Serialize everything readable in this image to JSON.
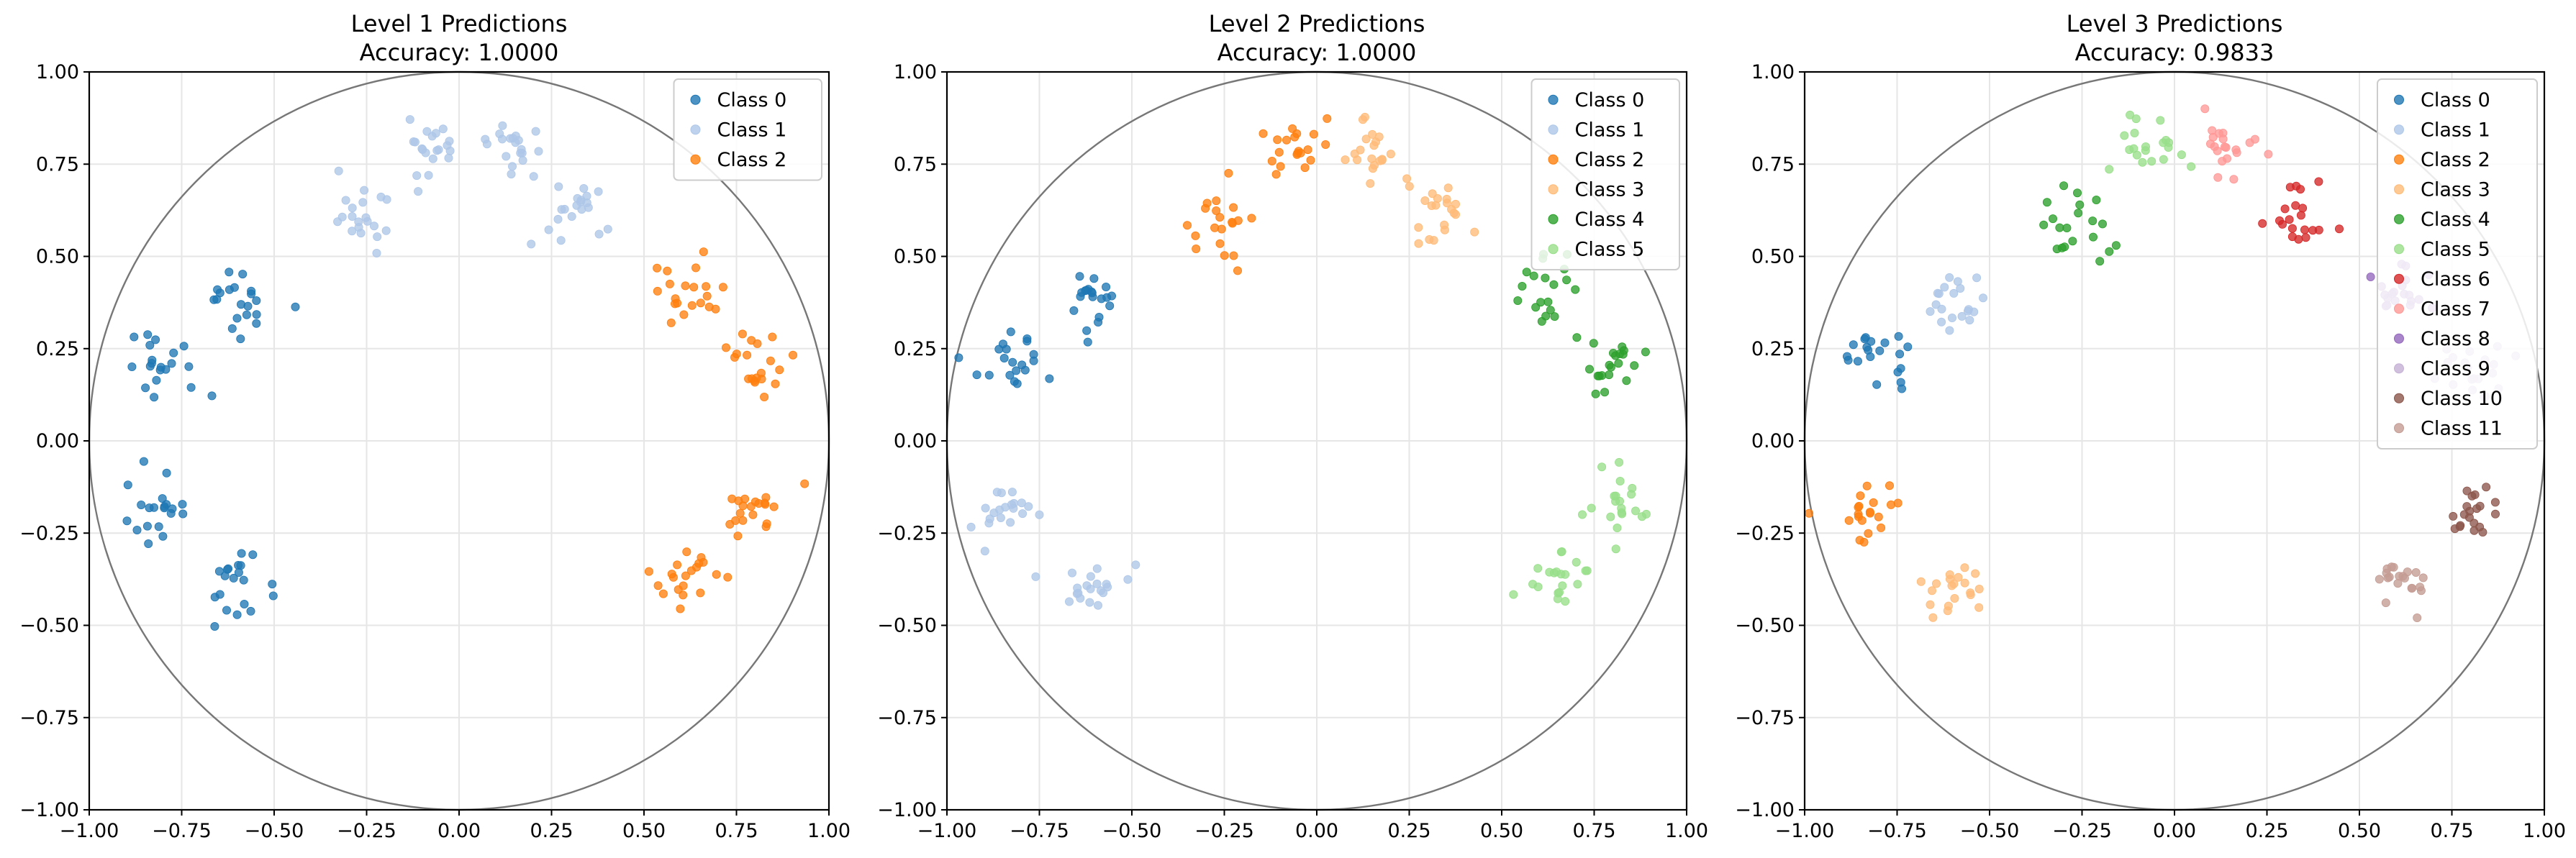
{
  "chart_data": [
    {
      "type": "scatter",
      "title": "Level 1 Predictions",
      "subtitle": "Accuracy: 1.0000",
      "xlim": [
        -1.0,
        1.0
      ],
      "ylim": [
        -1.0,
        1.0
      ],
      "xticks": [
        "−1.00",
        "−0.75",
        "−0.50",
        "−0.25",
        "0.00",
        "0.25",
        "0.50",
        "0.75",
        "1.00"
      ],
      "yticks": [
        "−1.00",
        "−0.75",
        "−0.50",
        "−0.25",
        "0.00",
        "0.25",
        "0.50",
        "0.75",
        "1.00"
      ],
      "grid": true,
      "unit_circle": true,
      "legend_position": "top-right",
      "series": [
        {
          "name": "Class 0",
          "color": "#1f77b4",
          "clusters": [
            [
              -0.6,
              0.38
            ],
            [
              -0.81,
              0.21
            ],
            [
              -0.83,
              -0.19
            ],
            [
              -0.61,
              -0.4
            ]
          ]
        },
        {
          "name": "Class 1",
          "color": "#aec7e8",
          "clusters": [
            [
              -0.27,
              0.6
            ],
            [
              -0.07,
              0.8
            ],
            [
              0.15,
              0.8
            ],
            [
              0.33,
              0.61
            ]
          ]
        },
        {
          "name": "Class 2",
          "color": "#ff7f0e",
          "clusters": [
            [
              0.61,
              0.4
            ],
            [
              0.8,
              0.21
            ],
            [
              0.8,
              -0.2
            ],
            [
              0.63,
              -0.39
            ]
          ]
        }
      ]
    },
    {
      "type": "scatter",
      "title": "Level 2 Predictions",
      "subtitle": "Accuracy: 1.0000",
      "xlim": [
        -1.0,
        1.0
      ],
      "ylim": [
        -1.0,
        1.0
      ],
      "xticks": [
        "−1.00",
        "−0.75",
        "−0.50",
        "−0.25",
        "0.00",
        "0.25",
        "0.50",
        "0.75",
        "1.00"
      ],
      "yticks": [
        "−1.00",
        "−0.75",
        "−0.50",
        "−0.25",
        "0.00",
        "0.25",
        "0.50",
        "0.75",
        "1.00"
      ],
      "grid": true,
      "unit_circle": true,
      "legend_position": "top-right",
      "series": [
        {
          "name": "Class 0",
          "color": "#1f77b4",
          "clusters": [
            [
              -0.6,
              0.38
            ],
            [
              -0.81,
              0.21
            ]
          ]
        },
        {
          "name": "Class 1",
          "color": "#aec7e8",
          "clusters": [
            [
              -0.83,
              -0.19
            ],
            [
              -0.61,
              -0.4
            ]
          ]
        },
        {
          "name": "Class 2",
          "color": "#ff7f0e",
          "clusters": [
            [
              -0.27,
              0.6
            ],
            [
              -0.07,
              0.8
            ]
          ]
        },
        {
          "name": "Class 3",
          "color": "#ffbb78",
          "clusters": [
            [
              0.15,
              0.8
            ],
            [
              0.33,
              0.61
            ]
          ]
        },
        {
          "name": "Class 4",
          "color": "#2ca02c",
          "clusters": [
            [
              0.61,
              0.4
            ],
            [
              0.8,
              0.21
            ]
          ]
        },
        {
          "name": "Class 5",
          "color": "#98df8a",
          "clusters": [
            [
              0.8,
              -0.2
            ],
            [
              0.63,
              -0.39
            ]
          ]
        }
      ]
    },
    {
      "type": "scatter",
      "title": "Level 3 Predictions",
      "subtitle": "Accuracy: 0.9833",
      "xlim": [
        -1.0,
        1.0
      ],
      "ylim": [
        -1.0,
        1.0
      ],
      "xticks": [
        "−1.00",
        "−0.75",
        "−0.50",
        "−0.25",
        "0.00",
        "0.25",
        "0.50",
        "0.75",
        "1.00"
      ],
      "yticks": [
        "−1.00",
        "−0.75",
        "−0.50",
        "−0.25",
        "0.00",
        "0.25",
        "0.50",
        "0.75",
        "1.00"
      ],
      "grid": true,
      "unit_circle": true,
      "legend_position": "top-right",
      "series": [
        {
          "name": "Class 0",
          "color": "#1f77b4",
          "clusters": [
            [
              -0.81,
              0.21
            ]
          ]
        },
        {
          "name": "Class 1",
          "color": "#aec7e8",
          "clusters": [
            [
              -0.6,
              0.38
            ]
          ]
        },
        {
          "name": "Class 2",
          "color": "#ff7f0e",
          "clusters": [
            [
              -0.83,
              -0.19
            ]
          ]
        },
        {
          "name": "Class 3",
          "color": "#ffbb78",
          "clusters": [
            [
              -0.61,
              -0.4
            ]
          ]
        },
        {
          "name": "Class 4",
          "color": "#2ca02c",
          "clusters": [
            [
              -0.27,
              0.6
            ]
          ]
        },
        {
          "name": "Class 5",
          "color": "#98df8a",
          "clusters": [
            [
              -0.07,
              0.8
            ]
          ]
        },
        {
          "name": "Class 6",
          "color": "#d62728",
          "clusters": [
            [
              0.33,
              0.61
            ]
          ]
        },
        {
          "name": "Class 7",
          "color": "#ff9896",
          "clusters": [
            [
              0.15,
              0.8
            ]
          ]
        },
        {
          "name": "Class 8",
          "color": "#9467bd",
          "clusters": [
            [
              0.61,
              0.4
            ]
          ]
        },
        {
          "name": "Class 9",
          "color": "#c5b0d5",
          "clusters": [
            [
              0.8,
              0.21
            ]
          ]
        },
        {
          "name": "Class 10",
          "color": "#8c564b",
          "clusters": [
            [
              0.8,
              -0.2
            ]
          ]
        },
        {
          "name": "Class 11",
          "color": "#c49c94",
          "clusters": [
            [
              0.63,
              -0.39
            ]
          ]
        }
      ]
    }
  ]
}
